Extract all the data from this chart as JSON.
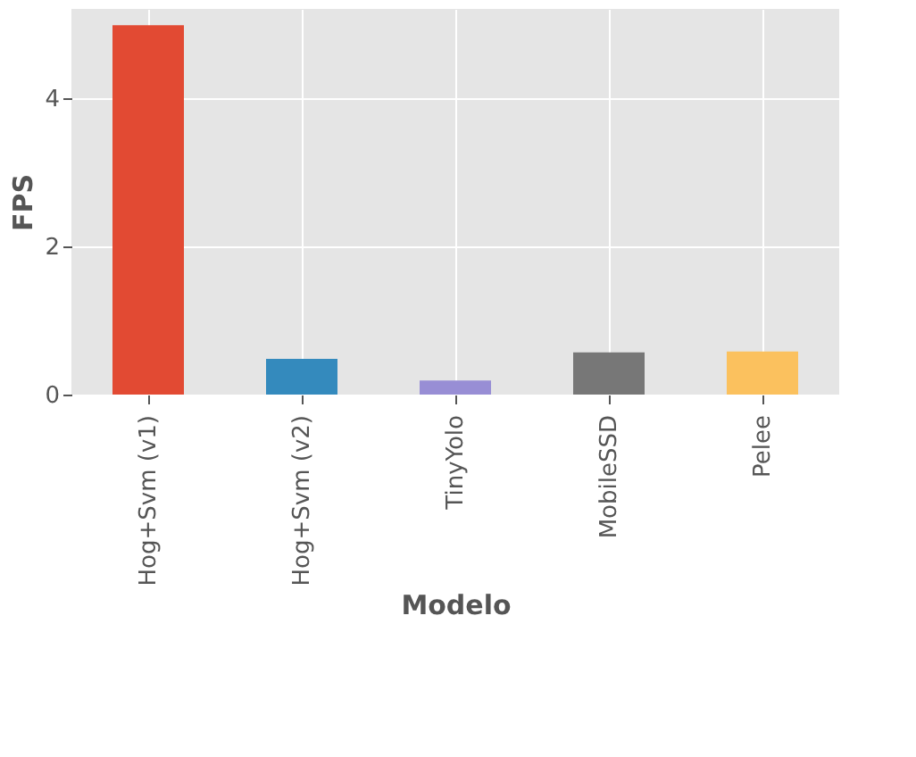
{
  "chart_data": {
    "type": "bar",
    "xlabel": "Modelo",
    "ylabel": "FPS",
    "categories": [
      "Hog+Svm (v1)",
      "Hog+Svm (v2)",
      "TinyYolo",
      "MobileSSD",
      "Pelee"
    ],
    "values": [
      4.98,
      0.48,
      0.19,
      0.57,
      0.58
    ],
    "colors": [
      "#e24a33",
      "#348abd",
      "#988ed5",
      "#777777",
      "#fbc15e"
    ],
    "ylim": [
      0,
      5.2
    ],
    "yticks": [
      0,
      2,
      4
    ],
    "grid": true
  }
}
